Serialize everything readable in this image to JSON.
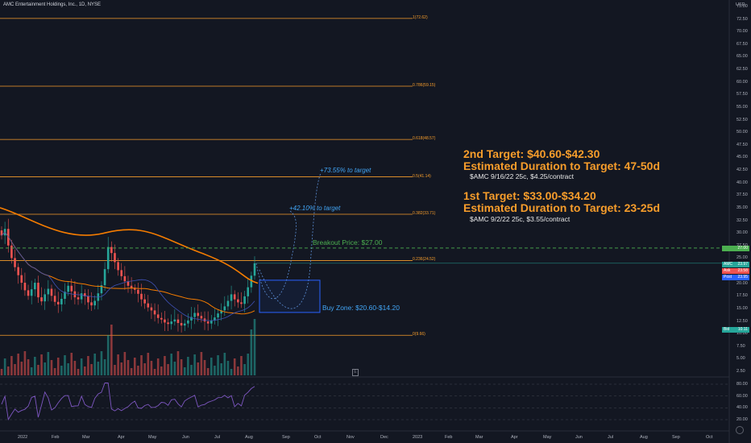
{
  "header": {
    "title": "AMC Entertainment Holdings, Inc., 1D, NYSE"
  },
  "price_axis": {
    "currency": "USD",
    "ticks": [
      "75.00",
      "72.50",
      "70.00",
      "67.50",
      "65.00",
      "62.50",
      "60.00",
      "57.50",
      "55.00",
      "52.50",
      "50.00",
      "47.50",
      "45.00",
      "42.50",
      "40.00",
      "37.50",
      "35.00",
      "32.50",
      "30.00",
      "27.50",
      "25.00",
      "22.50",
      "20.00",
      "17.50",
      "15.00",
      "12.50",
      "10.00",
      "7.50",
      "5.00",
      "2.50"
    ]
  },
  "osc_axis": {
    "ticks": [
      "80.00",
      "60.00",
      "40.00",
      "20.00"
    ]
  },
  "time_axis": {
    "ticks": [
      "2022",
      "Feb",
      "Mar",
      "Apr",
      "May",
      "Jun",
      "Jul",
      "Aug",
      "Sep",
      "Oct",
      "Nov",
      "Dec",
      "2023",
      "Feb",
      "Mar",
      "Apr",
      "May",
      "Jun",
      "Jul",
      "Aug",
      "Sep",
      "Oct"
    ]
  },
  "fib_levels": [
    {
      "label": "1(72.62)",
      "value": 72.62
    },
    {
      "label": "0.786(59.15)",
      "value": 59.15
    },
    {
      "label": "0.618(48.57)",
      "value": 48.57
    },
    {
      "label": "0.5(41.14)",
      "value": 41.14
    },
    {
      "label": "0.382(33.71)",
      "value": 33.71
    },
    {
      "label": "0.236(24.52)",
      "value": 24.52
    },
    {
      "label": "0(9.66)",
      "value": 9.66
    }
  ],
  "annotations": {
    "target2_title": "2nd Target: $40.60-$42.30",
    "target2_duration": "Estimated Duration to Target: 47-50d",
    "target2_option": "$AMC 9/16/22 25c, $4.25/contract",
    "target1_title": "1st Target: $33.00-$34.20",
    "target1_duration": "Estimated Duration to Target: 23-25d",
    "target1_option": "$AMC 9/2/22 25c, $3.55/contract",
    "breakout": "Breakout Price: $27.00",
    "buy_zone": "Buy Zone: $20.60-$14.20",
    "pct_target2": "+73.55% to target",
    "pct_target1": "+42.10% to target"
  },
  "price_tags": [
    {
      "label": "AMC",
      "value": "23.97",
      "color": "#26a69a"
    },
    {
      "label": "Ask",
      "value": "23.58",
      "color": "#ef5350"
    },
    {
      "label": "Post",
      "value": "23.95",
      "color": "#2962ff"
    },
    {
      "label": "Bid",
      "value": "10.11",
      "color": "#26a69a"
    },
    {
      "label": "",
      "value": "27.00",
      "color": "#4caf50"
    }
  ],
  "colors": {
    "background": "#131722",
    "fib": "#f79d2b",
    "up": "#26a69a",
    "down": "#ef5350",
    "ma_orange": "#f57c00",
    "ma_navy": "#3f51b5",
    "rsi": "#7e57c2",
    "zone": "#2962ff"
  },
  "chart_data": {
    "type": "candlestick",
    "symbol": "AMC",
    "timeframe": "1D",
    "ylim": [
      0,
      78
    ],
    "closes": [
      29.5,
      30.8,
      27.5,
      25.0,
      23.2,
      21.6,
      20.1,
      18.6,
      17.5,
      18.8,
      20.1,
      17.2,
      16.4,
      17.8,
      18.9,
      17.5,
      16.3,
      15.8,
      16.9,
      18.3,
      19.5,
      18.4,
      17.2,
      16.8,
      18.0,
      17.4,
      16.2,
      15.6,
      16.5,
      18.0,
      19.6,
      22.8,
      27.2,
      26.0,
      24.2,
      22.6,
      21.4,
      20.4,
      19.5,
      19.0,
      18.7,
      17.9,
      16.8,
      16.0,
      15.2,
      14.6,
      13.8,
      13.1,
      12.8,
      12.2,
      11.9,
      12.4,
      12.8,
      12.1,
      11.6,
      12.0,
      12.6,
      13.3,
      14.1,
      13.5,
      13.0,
      12.4,
      12.0,
      12.6,
      13.2,
      14.0,
      14.6,
      15.4,
      16.5,
      17.8,
      16.8,
      16.2,
      15.9,
      17.4,
      19.2,
      21.5,
      23.97
    ]
  }
}
